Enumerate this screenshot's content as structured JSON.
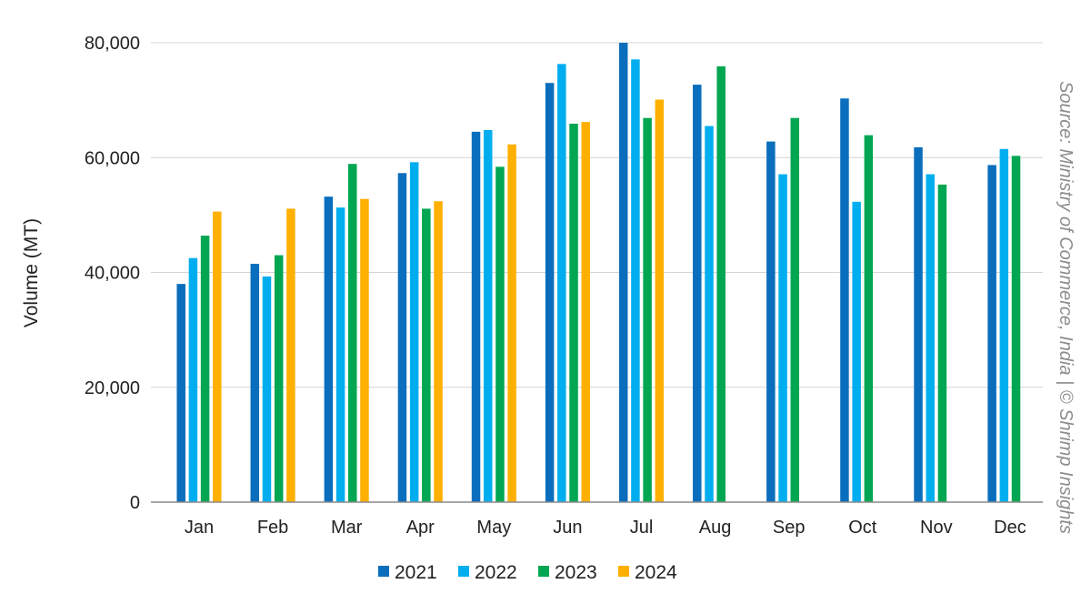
{
  "chart_data": {
    "type": "bar",
    "title": "",
    "xlabel": "",
    "ylabel": "Volume (MT)",
    "ylim": [
      0,
      80000
    ],
    "yticks": [
      0,
      20000,
      40000,
      60000,
      80000
    ],
    "ytick_labels": [
      "0",
      "20,000",
      "40,000",
      "60,000",
      "80,000"
    ],
    "grid": "horizontal",
    "legend_position": "bottom",
    "categories": [
      "Jan",
      "Feb",
      "Mar",
      "Apr",
      "May",
      "Jun",
      "Jul",
      "Aug",
      "Sep",
      "Oct",
      "Nov",
      "Dec"
    ],
    "series": [
      {
        "name": "2021",
        "color": "#0a6ebd",
        "values": [
          38000,
          41500,
          53200,
          57300,
          64500,
          73000,
          80000,
          72700,
          62800,
          70300,
          61800,
          58700
        ]
      },
      {
        "name": "2022",
        "color": "#00aeef",
        "values": [
          42500,
          39300,
          51300,
          59200,
          64800,
          76300,
          77100,
          65500,
          57100,
          52300,
          57100,
          61500
        ]
      },
      {
        "name": "2023",
        "color": "#00a651",
        "values": [
          46400,
          43000,
          58900,
          51100,
          58400,
          65900,
          66900,
          75900,
          66900,
          63900,
          55300,
          60300
        ]
      },
      {
        "name": "2024",
        "color": "#ffb000",
        "values": [
          50600,
          51100,
          52800,
          52400,
          62300,
          66200,
          70100,
          null,
          null,
          null,
          null,
          null
        ]
      }
    ],
    "annotations": [
      "Source: Ministry of Commerce, India | © Shrimp Insights"
    ]
  }
}
